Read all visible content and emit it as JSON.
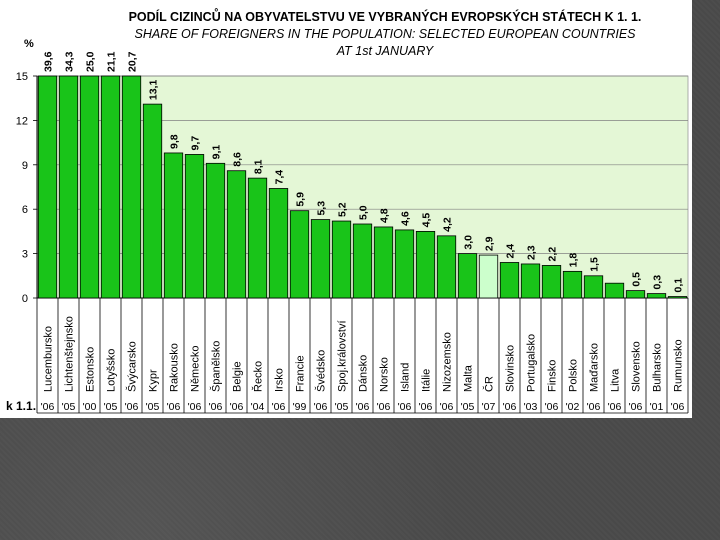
{
  "chart_data": {
    "type": "bar",
    "title": "PODÍL CIZINCŮ NA OBYVATELSTVU VE VYBRANÝCH EVROPSKÝCH STÁTECH K 1. 1.",
    "subtitle_line1": "SHARE OF FOREIGNERS IN THE POPULATION: SELECTED EUROPEAN COUNTRIES",
    "subtitle_line2": "AT 1st JANUARY",
    "ylabel": "%",
    "ylim": [
      0,
      15
    ],
    "yticks": [
      0,
      3,
      6,
      9,
      12,
      15
    ],
    "grid": true,
    "year_row_label": "k 1.1.",
    "categories": [
      "Lucembursko",
      "Lichtenštejnsko",
      "Estonsko",
      "Lotyšsko",
      "Švýcarsko",
      "Kypr",
      "Rakousko",
      "Německo",
      "Španělsko",
      "Belgie",
      "Řecko",
      "Irsko",
      "Francie",
      "Švédsko",
      "Spoj.království",
      "Dánsko",
      "Norsko",
      "Island",
      "Itálie",
      "Nizozemsko",
      "Malta",
      "ČR",
      "Slovinsko",
      "Portugalsko",
      "Finsko",
      "Polsko",
      "Maďarsko",
      "Litva",
      "Slovensko",
      "Bulharsko",
      "Rumunsko"
    ],
    "values": [
      39.6,
      34.3,
      25.0,
      21.1,
      20.7,
      13.1,
      9.8,
      9.7,
      9.1,
      8.6,
      8.1,
      7.4,
      5.9,
      5.3,
      5.2,
      5.0,
      4.8,
      4.6,
      4.5,
      4.2,
      3.0,
      2.9,
      2.4,
      2.3,
      2.2,
      1.8,
      1.5,
      1.0,
      0.5,
      0.3,
      0.1
    ],
    "value_labels": [
      "39,6",
      "34,3",
      "25,0",
      "21,1",
      "20,7",
      "13,1",
      "9,8",
      "9,7",
      "9,1",
      "8,6",
      "8,1",
      "7,4",
      "5,9",
      "5,3",
      "5,2",
      "5,0",
      "4,8",
      "4,6",
      "4,5",
      "4,2",
      "3,0",
      "2,9",
      "2,4",
      "2,3",
      "2,2",
      "1,8",
      "1,5",
      "",
      "0,5",
      "0,3",
      "0,1"
    ],
    "years": [
      "'06",
      "'05",
      "'00",
      "'05",
      "'06",
      "'05",
      "'06",
      "'06",
      "'06",
      "'06",
      "'04",
      "'06",
      "'99",
      "'06",
      "'05",
      "'06",
      "'06",
      "'06",
      "'06",
      "'06",
      "'05",
      "'07",
      "'06",
      "'03",
      "'06",
      "'02",
      "'06",
      "'06",
      "'06",
      "'01",
      "'06"
    ],
    "highlight_category": "ČR",
    "colors": {
      "bar": "#19c419",
      "bar_highlight": "#ccffcc",
      "plot_bg": "#e4f7d6",
      "grid": "#808080"
    }
  }
}
